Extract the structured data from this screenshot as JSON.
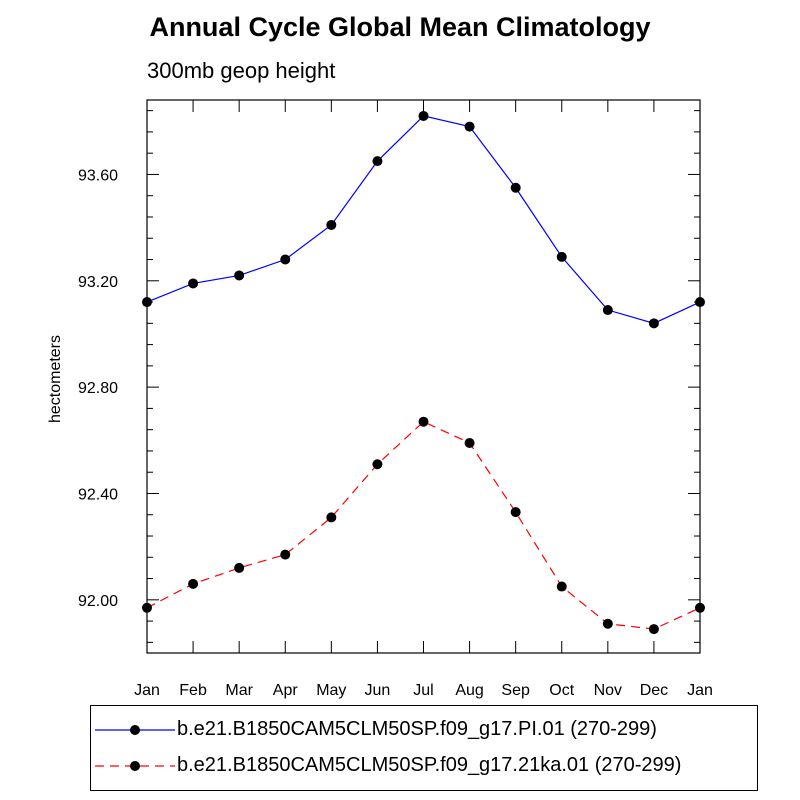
{
  "chart_data": {
    "type": "line",
    "title": "Annual Cycle Global Mean Climatology",
    "subtitle": "300mb geop height",
    "xlabel": "",
    "ylabel": "hectometers",
    "categories": [
      "Jan",
      "Feb",
      "Mar",
      "Apr",
      "May",
      "Jun",
      "Jul",
      "Aug",
      "Sep",
      "Oct",
      "Nov",
      "Dec",
      "Jan"
    ],
    "ylim": [
      91.8,
      93.88
    ],
    "yticks": [
      92.0,
      92.4,
      92.8,
      93.2,
      93.6
    ],
    "ytick_labels": [
      "92.00",
      "92.40",
      "92.80",
      "93.20",
      "93.60"
    ],
    "grid": false,
    "series": [
      {
        "name": "b.e21.B1850CAM5CLM50SP.f09_g17.PI.01 (270-299)",
        "color": "#0000ff",
        "dash": "solid",
        "marker": "circle",
        "values": [
          93.12,
          93.19,
          93.22,
          93.28,
          93.41,
          93.65,
          93.82,
          93.78,
          93.55,
          93.29,
          93.09,
          93.04,
          93.12
        ]
      },
      {
        "name": "b.e21.B1850CAM5CLM50SP.f09_g17.21ka.01 (270-299)",
        "color": "#ff0000",
        "dash": "dashed",
        "marker": "circle",
        "values": [
          91.97,
          92.06,
          92.12,
          92.17,
          92.31,
          92.51,
          92.67,
          92.59,
          92.33,
          92.05,
          91.91,
          91.89,
          91.97
        ]
      }
    ]
  }
}
